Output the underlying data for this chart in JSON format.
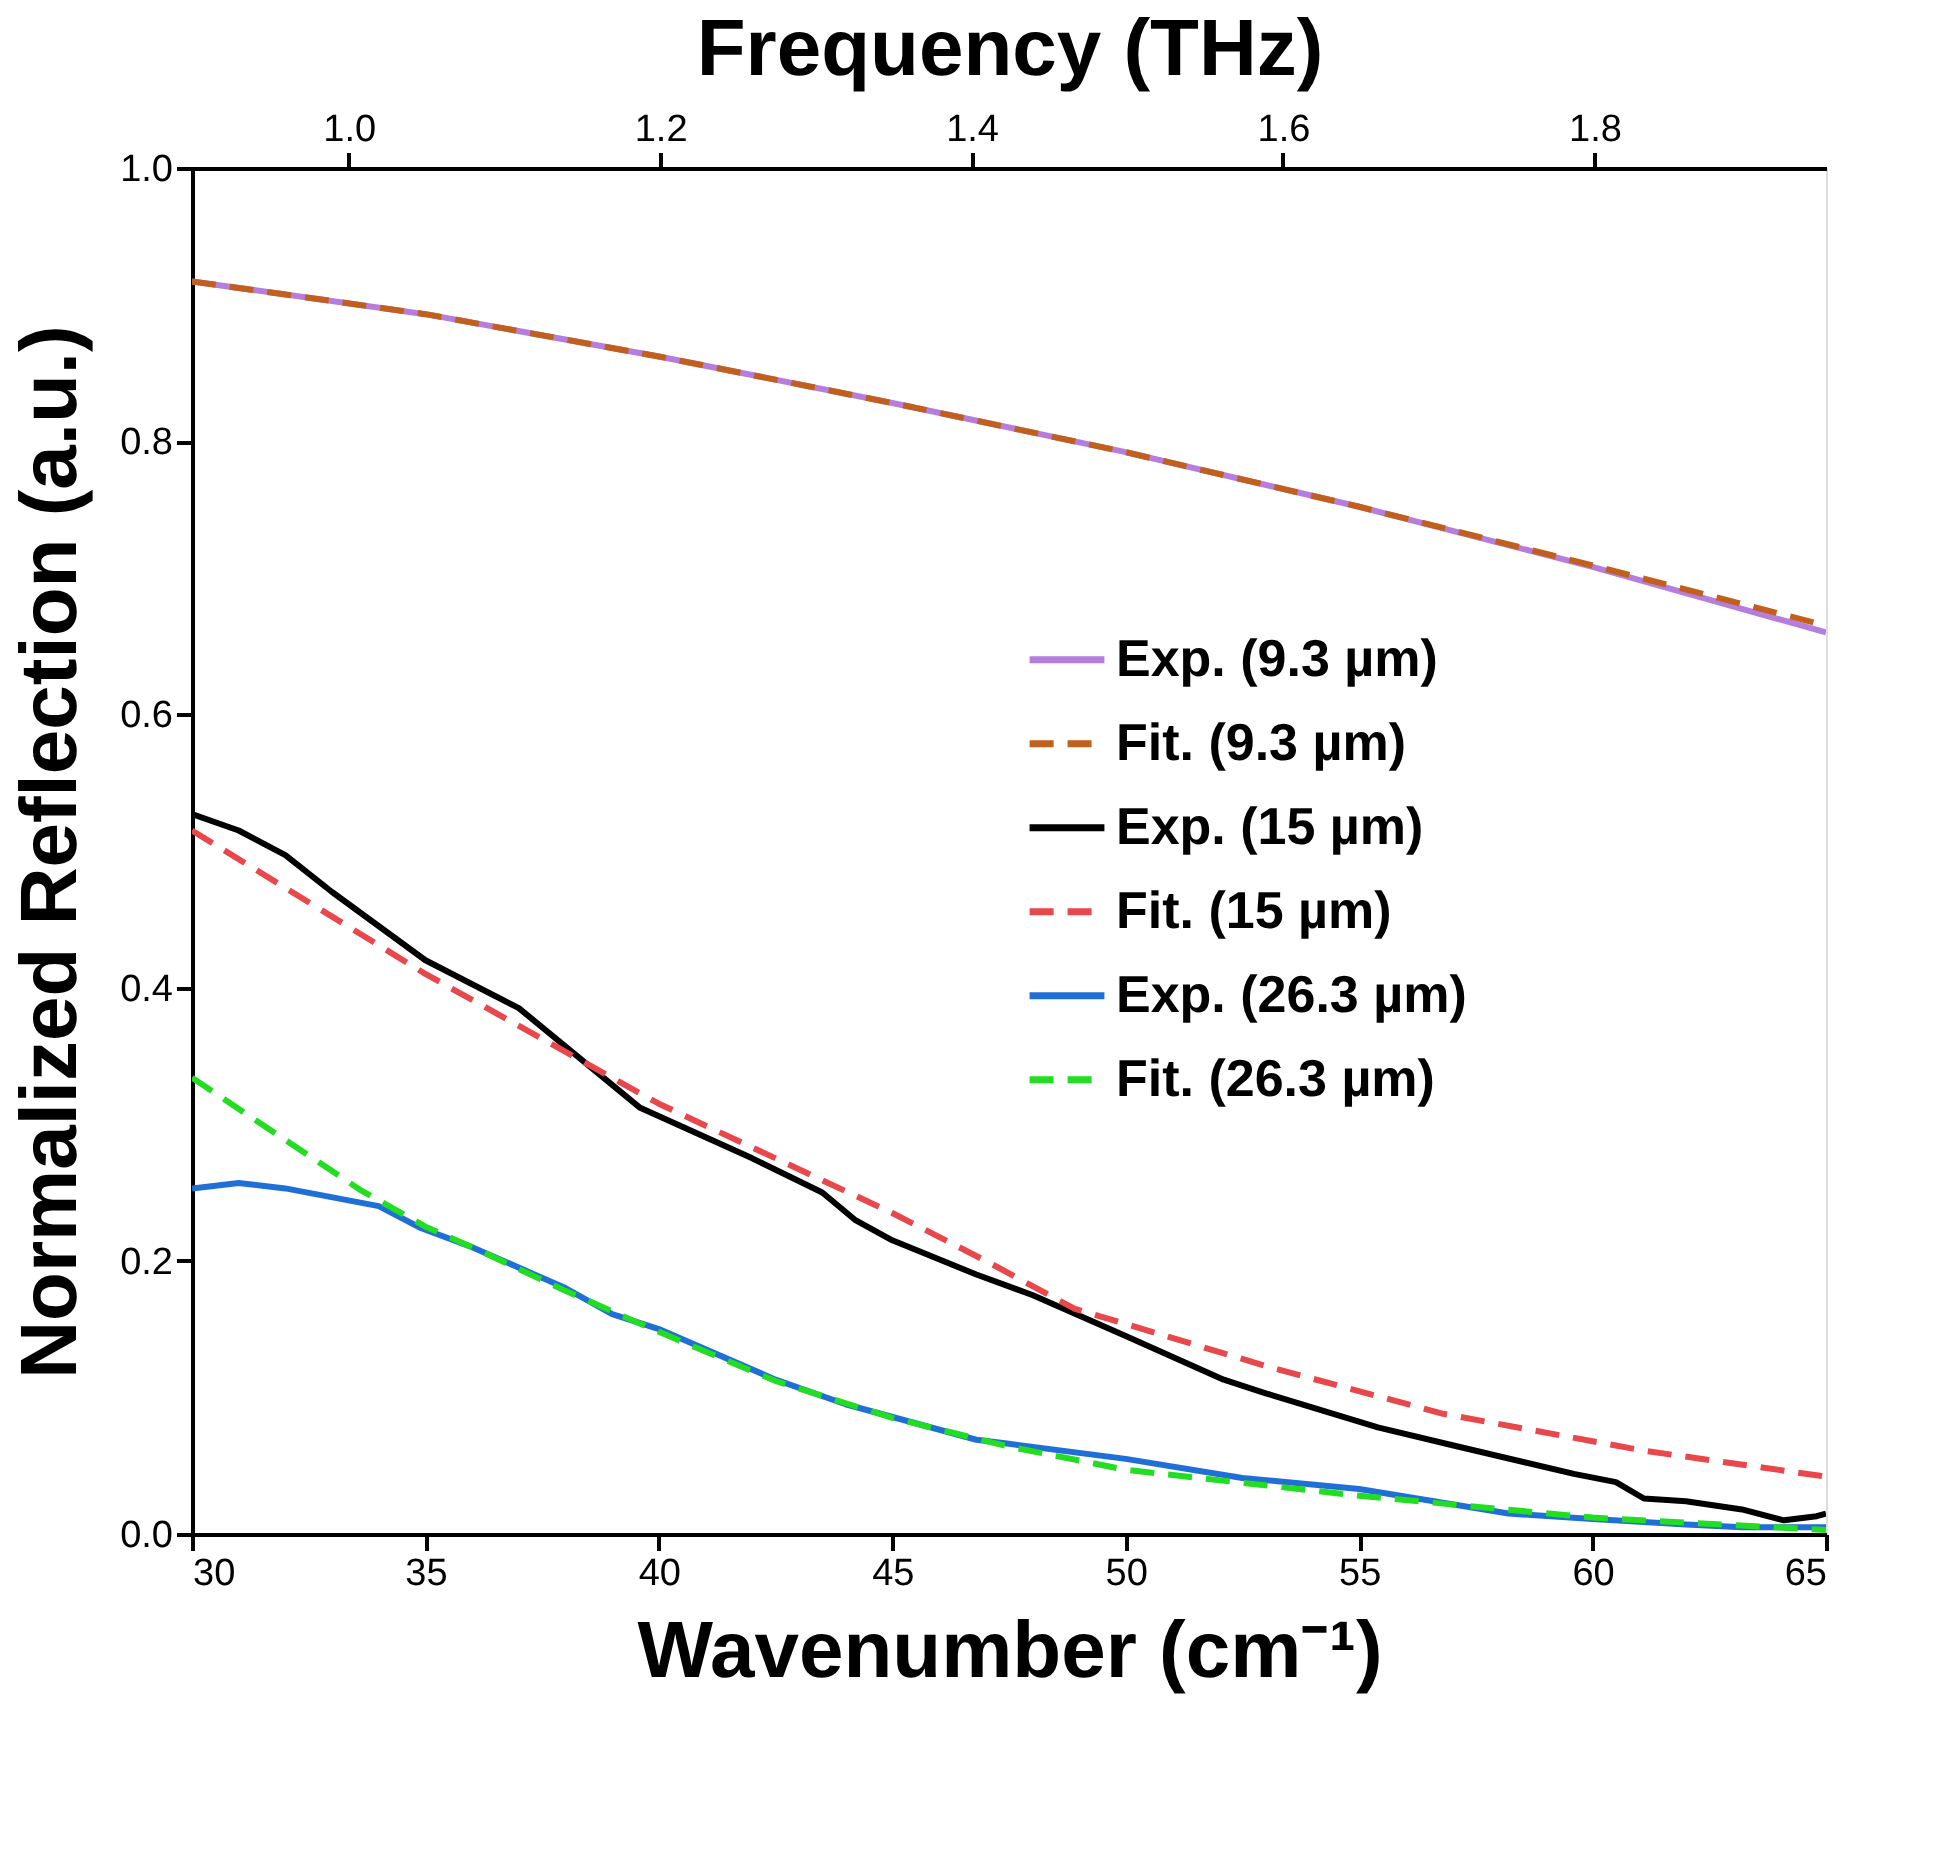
{
  "chart_data": {
    "type": "line",
    "x2label": "Frequency (THz)",
    "xlabel": "Wavenumber (cm⁻¹)",
    "ylabel": "Normalized Reflection (a.u.)",
    "xlim": [
      30,
      65
    ],
    "xticks": [
      30,
      35,
      40,
      45,
      50,
      55,
      60,
      65
    ],
    "x2lim": [
      0.8994,
      1.9487
    ],
    "x2ticks": [
      {
        "value": 1.0,
        "label": "1.0"
      },
      {
        "value": 1.2,
        "label": "1.2"
      },
      {
        "value": 1.4,
        "label": "1.4"
      },
      {
        "value": 1.6,
        "label": "1.6"
      },
      {
        "value": 1.8,
        "label": "1.8"
      }
    ],
    "ylim": [
      0,
      1
    ],
    "yticks": [
      {
        "value": 0,
        "label": "0.0"
      },
      {
        "value": 0.2,
        "label": "0.2"
      },
      {
        "value": 0.4,
        "label": "0.4"
      },
      {
        "value": 0.6,
        "label": "0.6"
      },
      {
        "value": 0.8,
        "label": "0.8"
      },
      {
        "value": 1,
        "label": "1.0"
      }
    ],
    "legend": "right",
    "grid": false,
    "series": [
      {
        "name": "Exp. (9.3 µm)",
        "color": "#b57edc",
        "line_style": "solid",
        "x": [
          30,
          35,
          40,
          45,
          50,
          55,
          60,
          65
        ],
        "values": [
          0.917,
          0.893,
          0.862,
          0.828,
          0.792,
          0.752,
          0.708,
          0.66
        ]
      },
      {
        "name": "Fit. (9.3 µm)",
        "color": "#c0601c",
        "line_style": "dashed",
        "x": [
          30,
          35,
          40,
          45,
          50,
          55,
          60,
          65
        ],
        "values": [
          0.917,
          0.893,
          0.862,
          0.828,
          0.792,
          0.752,
          0.709,
          0.665
        ]
      },
      {
        "name": "Exp. (15 µm)",
        "color": "#000000",
        "line_style": "solid",
        "x": [
          30,
          31,
          32,
          33,
          35,
          37,
          39.6,
          42,
          43.5,
          44.2,
          45,
          46.8,
          48,
          50,
          52.1,
          53,
          55.4,
          57,
          59.6,
          60.5,
          61.1,
          62,
          63.2,
          64.1,
          64.8,
          65
        ],
        "values": [
          0.527,
          0.515,
          0.497,
          0.47,
          0.42,
          0.385,
          0.312,
          0.275,
          0.25,
          0.23,
          0.215,
          0.19,
          0.175,
          0.145,
          0.113,
          0.103,
          0.078,
          0.065,
          0.044,
          0.038,
          0.026,
          0.024,
          0.018,
          0.01,
          0.013,
          0.015
        ]
      },
      {
        "name": "Fit. (15 µm)",
        "color": "#e8474b",
        "line_style": "dashed",
        "x": [
          30,
          35,
          40,
          45,
          47,
          48.9,
          53.1,
          56.8,
          61.1,
          65
        ],
        "values": [
          0.515,
          0.41,
          0.315,
          0.235,
          0.2,
          0.165,
          0.122,
          0.088,
          0.061,
          0.042
        ]
      },
      {
        "name": "Exp. (26.3 µm)",
        "color": "#1f6fd6",
        "line_style": "solid",
        "x": [
          30,
          31,
          32,
          34,
          34.9,
          36,
          38,
          39,
          40,
          42.5,
          44,
          46.8,
          47.5,
          50,
          52.5,
          55,
          58.2,
          60,
          62,
          63.2,
          65
        ],
        "values": [
          0.253,
          0.257,
          0.253,
          0.24,
          0.224,
          0.21,
          0.18,
          0.161,
          0.15,
          0.113,
          0.095,
          0.069,
          0.066,
          0.055,
          0.041,
          0.033,
          0.015,
          0.011,
          0.007,
          0.005,
          0.005
        ]
      },
      {
        "name": "Fit. (26.3 µm)",
        "color": "#22dd22",
        "line_style": "dashed",
        "x": [
          30,
          31.8,
          33.6,
          35,
          36,
          38,
          40,
          42.5,
          45,
          47.5,
          50,
          55,
          60,
          65
        ],
        "values": [
          0.334,
          0.293,
          0.252,
          0.225,
          0.21,
          0.178,
          0.148,
          0.112,
          0.085,
          0.064,
          0.047,
          0.028,
          0.012,
          0.003
        ]
      }
    ]
  }
}
